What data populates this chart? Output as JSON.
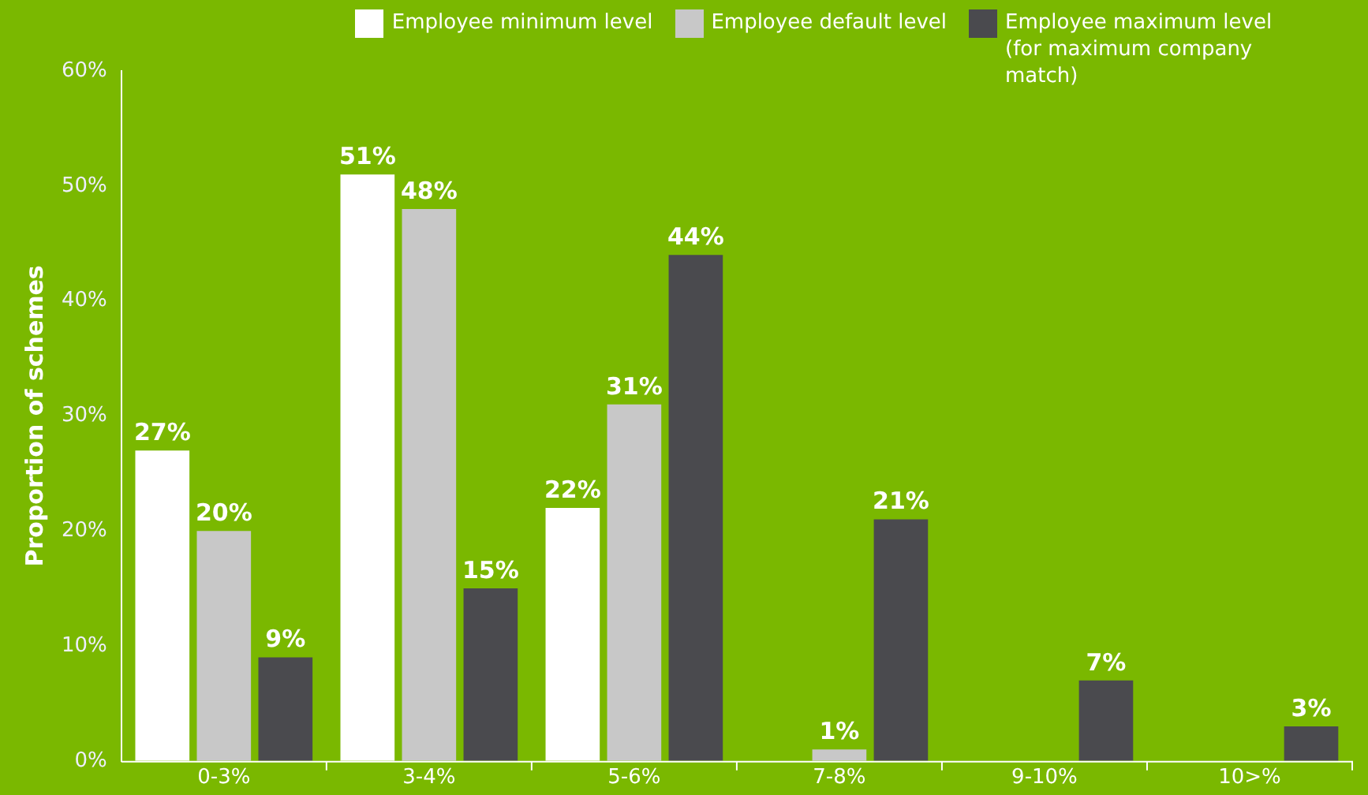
{
  "chart_data": {
    "type": "bar",
    "ylabel": "Proportion of schemes",
    "categories": [
      "0-3%",
      "3-4%",
      "5-6%",
      "7-8%",
      "9-10%",
      "10>%"
    ],
    "series": [
      {
        "name": "Employee minimum level",
        "color": "#ffffff",
        "values": [
          27,
          51,
          22,
          null,
          null,
          null
        ],
        "value_labels": [
          "27%",
          "51%",
          "22%",
          null,
          null,
          null
        ]
      },
      {
        "name": "Employee default level",
        "color": "#c8c8c8",
        "values": [
          20,
          48,
          31,
          1,
          null,
          null
        ],
        "value_labels": [
          "20%",
          "48%",
          "31%",
          "1%",
          null,
          null
        ]
      },
      {
        "name": "Employee maximum level (for maximum company match)",
        "color": "#4a4a4e",
        "values": [
          9,
          15,
          44,
          21,
          7,
          3
        ],
        "value_labels": [
          "9%",
          "15%",
          "44%",
          "21%",
          "7%",
          "3%"
        ]
      }
    ],
    "ylim": [
      0,
      60
    ],
    "yticks": [
      {
        "value": 0,
        "label": "0%"
      },
      {
        "value": 10,
        "label": "10%"
      },
      {
        "value": 20,
        "label": "20%"
      },
      {
        "value": 30,
        "label": "30%"
      },
      {
        "value": 40,
        "label": "40%"
      },
      {
        "value": 50,
        "label": "50%"
      },
      {
        "value": 60,
        "label": "60%"
      }
    ],
    "grid": false,
    "legend": "top right"
  }
}
